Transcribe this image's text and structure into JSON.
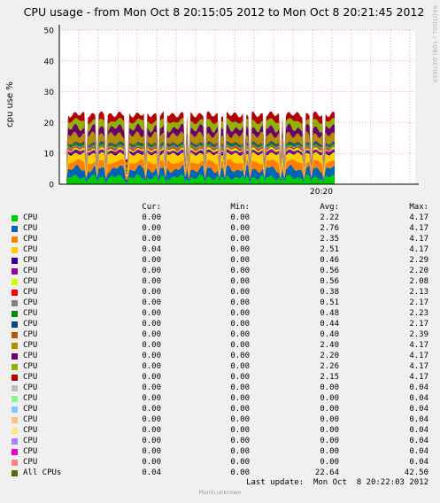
{
  "chart_data": {
    "type": "area",
    "title": "CPU usage - from Mon Oct  8 20:15:05 2012 to Mon Oct  8 20:21:45 2012",
    "ylabel": "cpu use %",
    "xlabel": "",
    "ylim": [
      0,
      50
    ],
    "yticks": [
      0,
      10,
      20,
      30,
      40,
      50
    ],
    "xticks": [
      "20:20"
    ],
    "grid": true,
    "watermark": "RRDTOOL / TOBI OETIKER",
    "header": {
      "cur": "Cur:",
      "min": "Min:",
      "avg": "Avg:",
      "max": "Max:"
    },
    "series": [
      {
        "name": "CPU",
        "color": "#00cc00",
        "cur": "0.00",
        "min": "0.00",
        "avg": "2.22",
        "max": "4.17"
      },
      {
        "name": "CPU",
        "color": "#0066b3",
        "cur": "0.00",
        "min": "0.00",
        "avg": "2.76",
        "max": "4.17"
      },
      {
        "name": "CPU",
        "color": "#ff8000",
        "cur": "0.00",
        "min": "0.00",
        "avg": "2.35",
        "max": "4.17"
      },
      {
        "name": "CPU",
        "color": "#ffcc00",
        "cur": "0.04",
        "min": "0.00",
        "avg": "2.51",
        "max": "4.17"
      },
      {
        "name": "CPU",
        "color": "#330099",
        "cur": "0.00",
        "min": "0.00",
        "avg": "0.46",
        "max": "2.29"
      },
      {
        "name": "CPU",
        "color": "#990099",
        "cur": "0.00",
        "min": "0.00",
        "avg": "0.56",
        "max": "2.20"
      },
      {
        "name": "CPU",
        "color": "#ccff00",
        "cur": "0.00",
        "min": "0.00",
        "avg": "0.56",
        "max": "2.08"
      },
      {
        "name": "CPU",
        "color": "#ff0000",
        "cur": "0.00",
        "min": "0.00",
        "avg": "0.38",
        "max": "2.13"
      },
      {
        "name": "CPU",
        "color": "#808080",
        "cur": "0.00",
        "min": "0.00",
        "avg": "0.51",
        "max": "2.17"
      },
      {
        "name": "CPU",
        "color": "#008f00",
        "cur": "0.00",
        "min": "0.00",
        "avg": "0.48",
        "max": "2.23"
      },
      {
        "name": "CPU",
        "color": "#00487d",
        "cur": "0.00",
        "min": "0.00",
        "avg": "0.44",
        "max": "2.17"
      },
      {
        "name": "CPU",
        "color": "#b35a00",
        "cur": "0.00",
        "min": "0.00",
        "avg": "0.40",
        "max": "2.39"
      },
      {
        "name": "CPU",
        "color": "#b38f00",
        "cur": "0.00",
        "min": "0.00",
        "avg": "2.40",
        "max": "4.17"
      },
      {
        "name": "CPU",
        "color": "#6b006b",
        "cur": "0.00",
        "min": "0.00",
        "avg": "2.20",
        "max": "4.17"
      },
      {
        "name": "CPU",
        "color": "#8fb300",
        "cur": "0.00",
        "min": "0.00",
        "avg": "2.26",
        "max": "4.17"
      },
      {
        "name": "CPU",
        "color": "#b30000",
        "cur": "0.00",
        "min": "0.00",
        "avg": "2.15",
        "max": "4.17"
      },
      {
        "name": "CPU",
        "color": "#bebebe",
        "cur": "0.00",
        "min": "0.00",
        "avg": "0.00",
        "max": "0.04"
      },
      {
        "name": "CPU",
        "color": "#80ff80",
        "cur": "0.00",
        "min": "0.00",
        "avg": "0.00",
        "max": "0.04"
      },
      {
        "name": "CPU",
        "color": "#80c9ff",
        "cur": "0.00",
        "min": "0.00",
        "avg": "0.00",
        "max": "0.04"
      },
      {
        "name": "CPU",
        "color": "#ffc080",
        "cur": "0.00",
        "min": "0.00",
        "avg": "0.00",
        "max": "0.04"
      },
      {
        "name": "CPU",
        "color": "#ffe680",
        "cur": "0.00",
        "min": "0.00",
        "avg": "0.00",
        "max": "0.04"
      },
      {
        "name": "CPU",
        "color": "#aa80ff",
        "cur": "0.00",
        "min": "0.00",
        "avg": "0.00",
        "max": "0.04"
      },
      {
        "name": "CPU",
        "color": "#ee00cc",
        "cur": "0.00",
        "min": "0.00",
        "avg": "0.00",
        "max": "0.04"
      },
      {
        "name": "CPU",
        "color": "#ff8080",
        "cur": "0.00",
        "min": "0.00",
        "avg": "0.00",
        "max": "0.04"
      }
    ],
    "total": {
      "name": "All CPUs",
      "color": "#666600",
      "cur": "0.04",
      "min": "0.00",
      "avg": "22.64",
      "max": "42.50"
    }
  },
  "footer": {
    "last_update": "Last update:  Mon Oct  8 20:22:03 2012",
    "brand": "Munin unknown"
  }
}
